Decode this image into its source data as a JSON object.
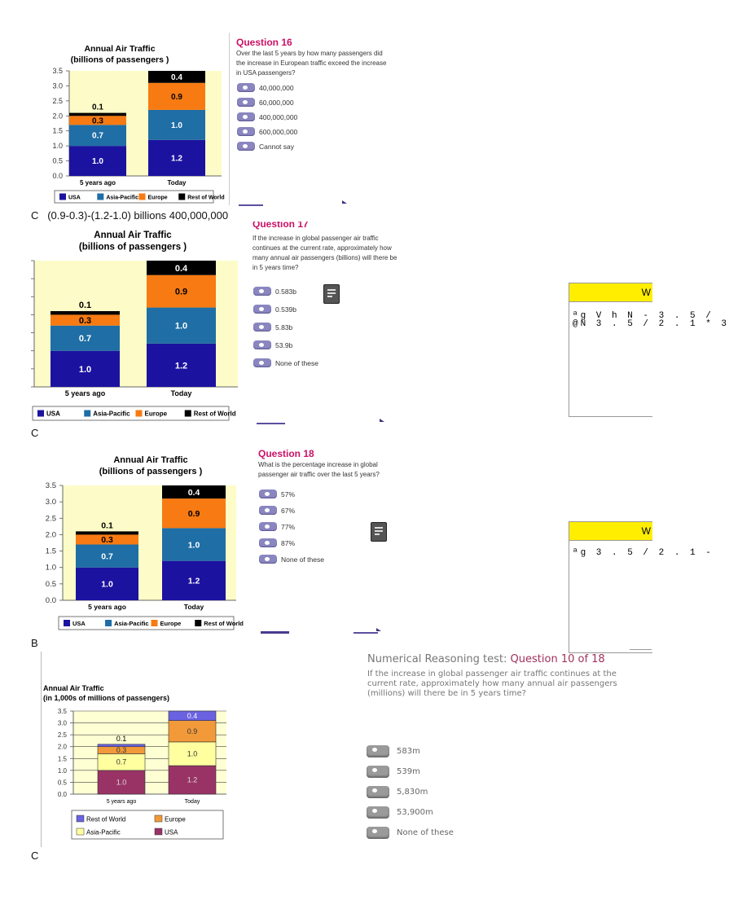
{
  "chart_data": [
    {
      "type": "bar",
      "stacked": true,
      "title": "Annual Air Traffic",
      "subtitle": "(billions of passengers )",
      "categories": [
        "5 years ago",
        "Today"
      ],
      "series": [
        {
          "name": "USA",
          "values": [
            1.0,
            1.2
          ],
          "color": "#1c12a0"
        },
        {
          "name": "Asia-Pacific",
          "values": [
            0.7,
            1.0
          ],
          "color": "#1f6ea5"
        },
        {
          "name": "Europe",
          "values": [
            0.3,
            0.9
          ],
          "color": "#f77a12"
        },
        {
          "name": "Rest of World",
          "values": [
            0.1,
            0.4
          ],
          "color": "#000000"
        }
      ],
      "ylim": [
        0,
        3.5
      ],
      "yticks": [
        "0.0",
        "0.5",
        "1.0",
        "1.5",
        "2.0",
        "2.5",
        "3.0",
        "3.5"
      ],
      "grid": false,
      "legend": "bottom",
      "background": "#fdfcc8"
    },
    {
      "type": "bar",
      "stacked": true,
      "title": "Annual Air Traffic",
      "subtitle": "(billions of passengers )",
      "categories": [
        "5 years ago",
        "Today"
      ],
      "series": [
        {
          "name": "USA",
          "values": [
            1.0,
            1.2
          ],
          "color": "#1c12a0"
        },
        {
          "name": "Asia-Pacific",
          "values": [
            0.7,
            1.0
          ],
          "color": "#1f6ea5"
        },
        {
          "name": "Europe",
          "values": [
            0.3,
            0.9
          ],
          "color": "#f77a12"
        },
        {
          "name": "Rest of World",
          "values": [
            0.1,
            0.4
          ],
          "color": "#000000"
        }
      ],
      "ylim": [
        0,
        3.5
      ],
      "yticks": [],
      "grid": false,
      "legend": "bottom",
      "background": "#fdfcc8"
    },
    {
      "type": "bar",
      "stacked": true,
      "title": "Annual Air Traffic",
      "subtitle": "(billions of passengers )",
      "categories": [
        "5 years ago",
        "Today"
      ],
      "series": [
        {
          "name": "USA",
          "values": [
            1.0,
            1.2
          ],
          "color": "#1c12a0"
        },
        {
          "name": "Asia-Pacific",
          "values": [
            0.7,
            1.0
          ],
          "color": "#1f6ea5"
        },
        {
          "name": "Europe",
          "values": [
            0.3,
            0.9
          ],
          "color": "#f77a12"
        },
        {
          "name": "Rest of World",
          "values": [
            0.1,
            0.4
          ],
          "color": "#000000"
        }
      ],
      "ylim": [
        0,
        3.5
      ],
      "yticks": [
        "0.0",
        "0.5",
        "1.0",
        "1.5",
        "2.0",
        "2.5",
        "3.0",
        "3.5"
      ],
      "grid": false,
      "legend": "bottom",
      "background": "#fdfcc8"
    },
    {
      "type": "bar",
      "stacked": true,
      "title": "Annual Air Traffic",
      "subtitle": "(in 1,000s of millions of passengers)",
      "categories": [
        "5 years ago",
        "Today"
      ],
      "series": [
        {
          "name": "USA",
          "values": [
            1.0,
            1.2
          ],
          "color": "#993366"
        },
        {
          "name": "Asia-Pacific",
          "values": [
            0.7,
            1.0
          ],
          "color": "#ffffa0"
        },
        {
          "name": "Europe",
          "values": [
            0.3,
            0.9
          ],
          "color": "#f29a3a"
        },
        {
          "name": "Rest of World",
          "values": [
            0.1,
            0.4
          ],
          "color": "#6a62e0"
        }
      ],
      "ylim": [
        0,
        3.5
      ],
      "yticks": [
        "0.0",
        "0.5",
        "1.0",
        "1.5",
        "2.0",
        "2.5",
        "3.0",
        "3.5"
      ],
      "grid": true,
      "legend": "bottom",
      "background": "#ffffd4"
    }
  ],
  "q16": {
    "title": "Question 16",
    "text": [
      "Over the last 5 years by how many passengers did",
      "the increase in European traffic exceed the increase",
      "in USA passengers?"
    ],
    "options": [
      "40,000,000",
      "60,000,000",
      "400,000,000",
      "600,000,000",
      "Cannot say"
    ]
  },
  "q17": {
    "title": "Question 17",
    "text": [
      "If the increase in global passenger air traffic",
      "continues at the current rate, approximately how",
      "many annual air passengers (billions) will there be",
      "in 5 years time?"
    ],
    "options": [
      "0.583b",
      "0.539b",
      "5.83b",
      "53.9b",
      "None of these"
    ]
  },
  "q18": {
    "title": "Question 18",
    "text": [
      "What is the percentage increase in global",
      "passenger air traffic over the last 5 years?"
    ],
    "options": [
      "57%",
      "67%",
      "77%",
      "87%",
      "None of these"
    ]
  },
  "q10": {
    "prefix": "Numerical Reasoning test: ",
    "title": "Question 10 of 18",
    "text": [
      "If the increase in global passenger air traffic continues at the",
      "current rate, approximately how many annual air passengers",
      "(millions) will there be in 5 years time?"
    ],
    "options": [
      "583m",
      "539m",
      "5,830m",
      "53,900m",
      "None of these"
    ]
  },
  "answers": [
    "C   (0.9-0.3)-(1.2-1.0) billions 400,000,000",
    "C",
    "B",
    "C"
  ],
  "wbox1": {
    "header": "W",
    "lines": [
      "ªg  V h N - 3 . 5 /",
      "@N  3 . 5 / 2 . 1 * 3"
    ]
  },
  "wbox2": {
    "header": "W",
    "lines": [
      "ªg   3 . 5 / 2 . 1 -"
    ]
  }
}
